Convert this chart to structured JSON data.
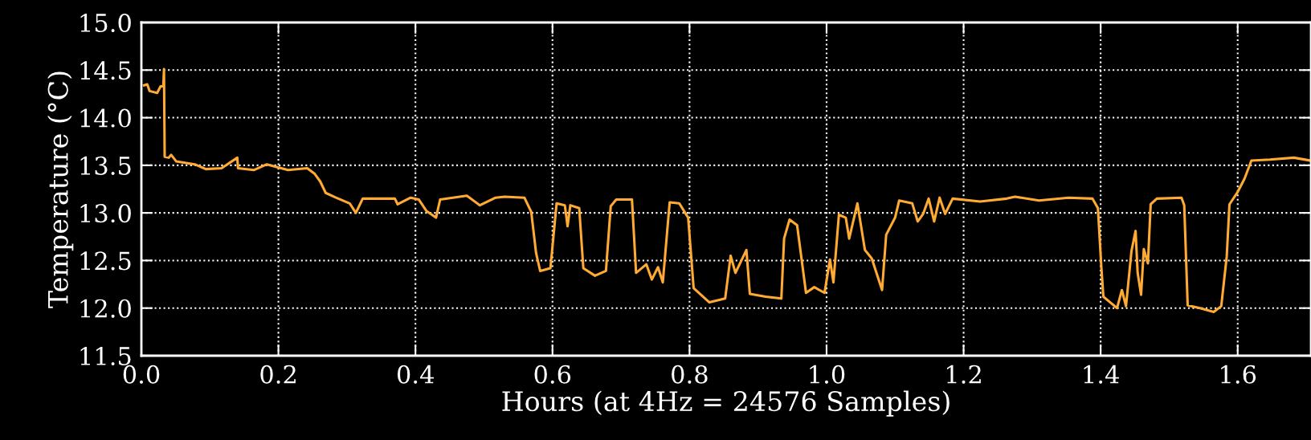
{
  "chart_data": {
    "type": "line",
    "xlabel": "Hours (at 4Hz = 24576 Samples)",
    "ylabel": "Temperature (°C)",
    "x": [
      0.004,
      0.0085,
      0.012,
      0.023,
      0.028,
      0.032,
      0.033,
      0.034,
      0.04,
      0.0435,
      0.051,
      0.078,
      0.094,
      0.117,
      0.14,
      0.141,
      0.164,
      0.183,
      0.214,
      0.242,
      0.253,
      0.261,
      0.269,
      0.284,
      0.304,
      0.313,
      0.323,
      0.346,
      0.37,
      0.374,
      0.393,
      0.405,
      0.416,
      0.43,
      0.436,
      0.475,
      0.494,
      0.517,
      0.53,
      0.559,
      0.569,
      0.576,
      0.582,
      0.597,
      0.606,
      0.618,
      0.622,
      0.626,
      0.639,
      0.645,
      0.662,
      0.678,
      0.685,
      0.693,
      0.716,
      0.722,
      0.737,
      0.745,
      0.754,
      0.761,
      0.771,
      0.785,
      0.798,
      0.806,
      0.829,
      0.852,
      0.86,
      0.867,
      0.883,
      0.888,
      0.911,
      0.934,
      0.938,
      0.946,
      0.957,
      0.97,
      0.982,
      0.997,
      1.005,
      1.01,
      1.018,
      1.028,
      1.033,
      1.045,
      1.056,
      1.066,
      1.081,
      1.087,
      1.1,
      1.106,
      1.125,
      1.133,
      1.141,
      1.149,
      1.157,
      1.165,
      1.173,
      1.184,
      1.224,
      1.263,
      1.275,
      1.31,
      1.353,
      1.388,
      1.396,
      1.401,
      1.404,
      1.414,
      1.424,
      1.431,
      1.437,
      1.445,
      1.451,
      1.454,
      1.459,
      1.463,
      1.469,
      1.473,
      1.482,
      1.518,
      1.522,
      1.527,
      1.545,
      1.565,
      1.576,
      1.584,
      1.588,
      1.6,
      1.61,
      1.62,
      1.647,
      1.682,
      1.706
    ],
    "series": [
      {
        "color": "#ffaa33",
        "values": [
          14.34,
          14.35,
          14.28,
          14.26,
          14.33,
          14.33,
          14.51,
          13.59,
          13.58,
          13.61,
          13.54,
          13.51,
          13.46,
          13.47,
          13.58,
          13.47,
          13.45,
          13.51,
          13.45,
          13.47,
          13.41,
          13.33,
          13.21,
          13.16,
          13.1,
          13.0,
          13.15,
          13.15,
          13.15,
          13.09,
          13.16,
          13.14,
          13.02,
          12.95,
          13.14,
          13.18,
          13.08,
          13.16,
          13.17,
          13.16,
          13.01,
          12.58,
          12.39,
          12.42,
          13.1,
          13.08,
          12.86,
          13.08,
          13.05,
          12.42,
          12.34,
          12.39,
          13.07,
          13.14,
          13.14,
          12.37,
          12.46,
          12.3,
          12.43,
          12.27,
          13.11,
          13.1,
          12.95,
          12.21,
          12.06,
          12.1,
          12.55,
          12.37,
          12.61,
          12.15,
          12.12,
          12.1,
          12.73,
          12.93,
          12.87,
          12.16,
          12.22,
          12.16,
          12.51,
          12.27,
          12.98,
          12.95,
          12.73,
          13.1,
          12.61,
          12.52,
          12.19,
          12.77,
          12.95,
          13.13,
          13.1,
          12.91,
          12.99,
          13.15,
          12.91,
          13.16,
          12.99,
          13.15,
          13.12,
          13.15,
          13.17,
          13.13,
          13.16,
          13.15,
          13.05,
          12.43,
          12.12,
          12.06,
          12.0,
          12.19,
          12.02,
          12.6,
          12.81,
          12.37,
          12.14,
          12.62,
          12.47,
          13.09,
          13.15,
          13.16,
          13.08,
          12.03,
          12.0,
          11.96,
          12.02,
          12.54,
          13.09,
          13.22,
          13.36,
          13.55,
          13.56,
          13.58,
          13.55
        ]
      }
    ],
    "xlim": [
      0,
      1.707
    ],
    "ylim": [
      11.5,
      15.0
    ],
    "xticks": [
      {
        "value": 0,
        "label": "0.0"
      },
      0.2,
      0.4,
      0.6,
      0.8,
      {
        "value": 1,
        "label": "1.0"
      },
      1.2,
      1.4,
      1.6
    ],
    "yticks": [
      11.5,
      {
        "value": 12,
        "label": "12.0"
      },
      12.5,
      {
        "value": 13,
        "label": "13.0"
      },
      13.5,
      {
        "value": 14,
        "label": "14.0"
      },
      14.5,
      {
        "value": 15,
        "label": "15.0"
      }
    ],
    "grid": true,
    "line_style": "solid"
  }
}
